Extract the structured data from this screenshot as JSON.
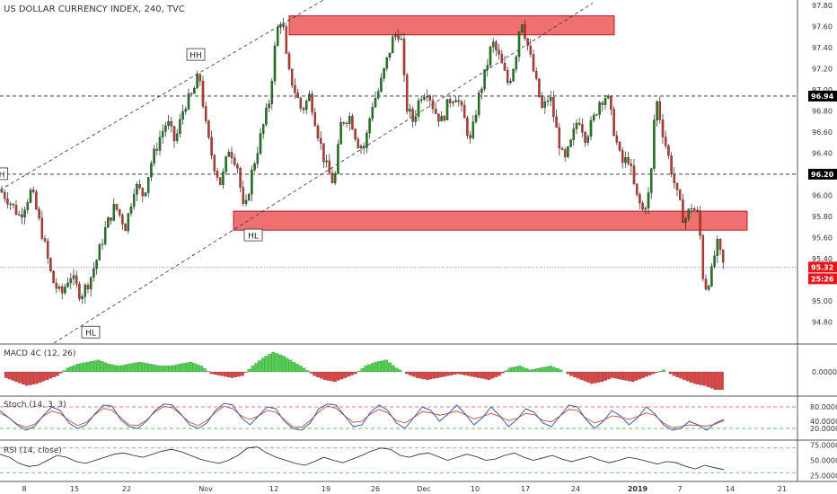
{
  "header": {
    "title": "US DOLLAR CURRENCY INDEX, 240, TVC"
  },
  "colors": {
    "bull": "#1f7a1f",
    "bear": "#c0392b",
    "wick": "#222222",
    "zone_fill": "#ef7070",
    "zone_stroke": "#b71c1c",
    "macd_pos": "#4cd44c",
    "macd_neg": "#e04040",
    "stoch_k": "#3b5ba9",
    "stoch_d": "#c0392b",
    "rsi_line": "#222222",
    "price_tag": "#000000",
    "current_tag": "#e8141c",
    "band_red": "#e05050",
    "band_green": "#2eaa2e"
  },
  "chart_data": {
    "type": "candlestick",
    "title": "US DOLLAR CURRENCY INDEX, 240, TVC",
    "x_labels": [
      "8",
      "15",
      "Nov",
      "12",
      "19",
      "26",
      "Dec",
      "10",
      "17",
      "24",
      "2019",
      "7",
      "14",
      "21"
    ],
    "y_ticks": [
      "97.80",
      "97.60",
      "97.40",
      "97.20",
      "97.00",
      "96.80",
      "96.60",
      "96.40",
      "96.20",
      "96.00",
      "95.80",
      "95.60",
      "95.40",
      "95.20",
      "95.00",
      "94.80"
    ],
    "y_tick_values": [
      97.8,
      97.6,
      97.4,
      97.2,
      97.0,
      96.8,
      96.6,
      96.4,
      96.2,
      96.0,
      95.8,
      95.6,
      95.4,
      95.2,
      95.0,
      94.8
    ],
    "ylim": [
      94.6,
      97.85
    ],
    "price_series": [
      [
        0,
        96.05
      ],
      [
        10,
        95.95
      ],
      [
        22,
        95.8
      ],
      [
        35,
        96.05
      ],
      [
        48,
        95.6
      ],
      [
        58,
        95.2
      ],
      [
        68,
        95.05
      ],
      [
        78,
        95.25
      ],
      [
        90,
        95.05
      ],
      [
        100,
        95.2
      ],
      [
        108,
        95.4
      ],
      [
        118,
        95.7
      ],
      [
        128,
        95.9
      ],
      [
        140,
        95.7
      ],
      [
        150,
        96.1
      ],
      [
        160,
        96.0
      ],
      [
        168,
        96.3
      ],
      [
        178,
        96.55
      ],
      [
        186,
        96.7
      ],
      [
        195,
        96.5
      ],
      [
        205,
        96.85
      ],
      [
        214,
        96.95
      ],
      [
        222,
        97.15
      ],
      [
        230,
        96.6
      ],
      [
        238,
        96.3
      ],
      [
        246,
        96.1
      ],
      [
        255,
        96.45
      ],
      [
        264,
        96.3
      ],
      [
        272,
        95.8
      ],
      [
        280,
        96.2
      ],
      [
        290,
        96.55
      ],
      [
        300,
        96.9
      ],
      [
        308,
        97.55
      ],
      [
        314,
        97.7
      ],
      [
        320,
        97.2
      ],
      [
        328,
        97.0
      ],
      [
        336,
        96.8
      ],
      [
        345,
        96.95
      ],
      [
        355,
        96.55
      ],
      [
        362,
        96.3
      ],
      [
        372,
        96.1
      ],
      [
        380,
        96.7
      ],
      [
        390,
        96.75
      ],
      [
        398,
        96.5
      ],
      [
        406,
        96.45
      ],
      [
        414,
        96.85
      ],
      [
        422,
        97.0
      ],
      [
        430,
        97.25
      ],
      [
        438,
        97.5
      ],
      [
        446,
        97.55
      ],
      [
        452,
        96.85
      ],
      [
        460,
        96.7
      ],
      [
        468,
        96.95
      ],
      [
        476,
        97.0
      ],
      [
        484,
        96.8
      ],
      [
        492,
        96.7
      ],
      [
        500,
        96.9
      ],
      [
        508,
        96.95
      ],
      [
        516,
        96.75
      ],
      [
        524,
        96.5
      ],
      [
        532,
        96.9
      ],
      [
        540,
        97.15
      ],
      [
        548,
        97.45
      ],
      [
        556,
        97.3
      ],
      [
        566,
        97.05
      ],
      [
        574,
        97.3
      ],
      [
        580,
        97.7
      ],
      [
        588,
        97.4
      ],
      [
        596,
        97.1
      ],
      [
        604,
        96.8
      ],
      [
        612,
        96.95
      ],
      [
        620,
        96.6
      ],
      [
        628,
        96.3
      ],
      [
        636,
        96.5
      ],
      [
        644,
        96.75
      ],
      [
        652,
        96.55
      ],
      [
        660,
        96.7
      ],
      [
        668,
        96.9
      ],
      [
        676,
        96.95
      ],
      [
        684,
        96.6
      ],
      [
        692,
        96.3
      ],
      [
        700,
        96.35
      ],
      [
        708,
        96.0
      ],
      [
        716,
        95.85
      ],
      [
        724,
        96.05
      ],
      [
        730,
        96.95
      ],
      [
        738,
        96.6
      ],
      [
        746,
        96.3
      ],
      [
        754,
        96.0
      ],
      [
        762,
        95.75
      ],
      [
        770,
        95.9
      ],
      [
        778,
        95.8
      ],
      [
        784,
        95.1
      ],
      [
        792,
        95.25
      ],
      [
        798,
        95.55
      ],
      [
        806,
        95.32
      ]
    ],
    "horizontal_levels": [
      {
        "value": 96.94,
        "label": "96.94",
        "style": "dashed"
      },
      {
        "value": 96.2,
        "label": "96.20",
        "style": "dashed"
      },
      {
        "value": 95.32,
        "label": "95.32",
        "style": "dotted-red"
      }
    ],
    "current_price": "95.32",
    "countdown": "25:26",
    "zones": [
      {
        "x0": 322,
        "x1": 684,
        "y_top": 97.7,
        "y_bottom": 97.52
      },
      {
        "x0": 260,
        "x1": 832,
        "y_top": 95.85,
        "y_bottom": 95.67
      }
    ],
    "trend_lines": [
      {
        "x1": 0,
        "y1": 96.05,
        "x2": 360,
        "y2": 97.85
      },
      {
        "x1": 60,
        "y1": 94.6,
        "x2": 660,
        "y2": 97.82
      }
    ],
    "pivot_labels": [
      {
        "text": "HH",
        "x": 218,
        "value": 97.33
      },
      {
        "text": "HL",
        "x": 282,
        "value": 95.62
      },
      {
        "text": "HL",
        "x": 101,
        "value": 94.7
      },
      {
        "text": "H",
        "x": 2,
        "value": 96.2
      }
    ],
    "macd": {
      "label": "MACD 4C (12, 26)",
      "zero_label": "0.0000",
      "values": [
        -0.3,
        -0.5,
        -0.7,
        -0.6,
        -0.4,
        -0.2,
        0.2,
        0.4,
        0.5,
        0.6,
        0.4,
        0.3,
        0.4,
        0.5,
        0.4,
        0.3,
        0.3,
        0.4,
        0.5,
        0.3,
        -0.1,
        -0.2,
        -0.3,
        -0.2,
        0.3,
        0.7,
        1.0,
        0.8,
        0.5,
        0.2,
        -0.2,
        -0.4,
        -0.5,
        -0.3,
        -0.1,
        0.3,
        0.5,
        0.6,
        0.2,
        -0.1,
        -0.3,
        -0.4,
        -0.3,
        -0.2,
        -0.1,
        -0.2,
        -0.3,
        -0.4,
        -0.2,
        0.2,
        0.3,
        0.1,
        0.2,
        0.3,
        0.1,
        -0.2,
        -0.4,
        -0.6,
        -0.5,
        -0.3,
        -0.4,
        -0.5,
        -0.3,
        -0.1,
        0.1,
        -0.2,
        -0.4,
        -0.6,
        -0.7,
        -0.9
      ]
    },
    "stoch": {
      "label": "Stoch (14, 3, 3)",
      "ticks": [
        "80.0000",
        "40.0000",
        "20.0000"
      ],
      "upper": 80,
      "lower": 20,
      "values": [
        70,
        50,
        30,
        15,
        25,
        55,
        80,
        70,
        35,
        20,
        30,
        60,
        85,
        82,
        45,
        25,
        20,
        40,
        70,
        88,
        85,
        60,
        30,
        20,
        35,
        70,
        90,
        85,
        50,
        30,
        55,
        80,
        75,
        40,
        20,
        15,
        35,
        75,
        88,
        85,
        55,
        25,
        30,
        65,
        85,
        70,
        35,
        20,
        50,
        80,
        70,
        40,
        60,
        85,
        60,
        30,
        50,
        80,
        55,
        25,
        45,
        75,
        65,
        35,
        25,
        55,
        85,
        80,
        45,
        20,
        40,
        70,
        55,
        30,
        50,
        80,
        60,
        30,
        15,
        20,
        40,
        30,
        15,
        35,
        45
      ]
    },
    "rsi": {
      "label": "RSI (14, close)",
      "ticks": [
        "75.0000",
        "50.0000",
        "25.0000"
      ],
      "upper": 70,
      "lower": 30,
      "values": [
        60,
        55,
        45,
        40,
        42,
        50,
        58,
        55,
        48,
        45,
        50,
        55,
        60,
        62,
        58,
        55,
        60,
        65,
        68,
        64,
        58,
        52,
        48,
        45,
        50,
        58,
        70,
        72,
        62,
        55,
        50,
        45,
        42,
        48,
        55,
        50,
        46,
        52,
        58,
        65,
        70,
        68,
        58,
        55,
        60,
        62,
        56,
        50,
        55,
        60,
        56,
        50,
        52,
        58,
        62,
        55,
        50,
        54,
        58,
        52,
        48,
        52,
        56,
        50,
        46,
        50,
        55,
        52,
        48,
        44,
        48,
        46,
        40,
        36,
        42,
        38,
        35
      ]
    }
  }
}
